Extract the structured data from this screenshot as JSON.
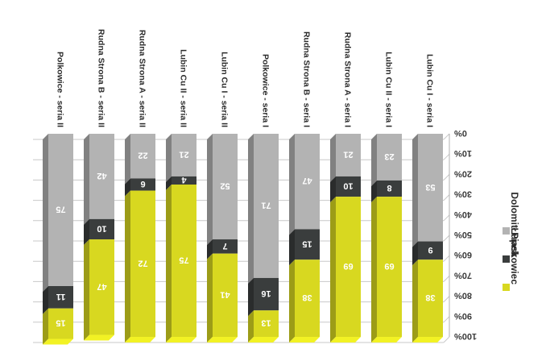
{
  "chart_data": {
    "type": "bar",
    "stacked": true,
    "percent_axis": true,
    "categories": [
      "Lubin Cu I - seria I",
      "Lubin Cu II - seria I",
      "Rudna Strona A - seria I",
      "Rudna Strona B - seria I",
      "Polkowice - seria I",
      "Lubin Cu I - seria II",
      "Lubin Cu II - seria II",
      "Rudna Strona A - seria II",
      "Rudna Strona B - seria II",
      "Polkowice - seria II"
    ],
    "series": [
      {
        "name": "Dolomit",
        "color": "#b3b3b3",
        "values": [
          53,
          23,
          21,
          47,
          71,
          52,
          21,
          22,
          42,
          75
        ]
      },
      {
        "name": "Łupek",
        "color": "#3a3d3d",
        "values": [
          9,
          8,
          10,
          15,
          16,
          7,
          4,
          6,
          10,
          11
        ]
      },
      {
        "name": "Piaskowiec",
        "color": "#d8d820",
        "values": [
          38,
          69,
          69,
          38,
          13,
          41,
          75,
          72,
          47,
          15
        ]
      }
    ],
    "ytick_labels": [
      "0%",
      "10%",
      "20%",
      "30%",
      "40%",
      "50%",
      "60%",
      "70%",
      "80%",
      "90%",
      "100%"
    ],
    "ylim": [
      0,
      100
    ],
    "grid": true,
    "legend_position": "right",
    "orientation": "rotated-180"
  }
}
